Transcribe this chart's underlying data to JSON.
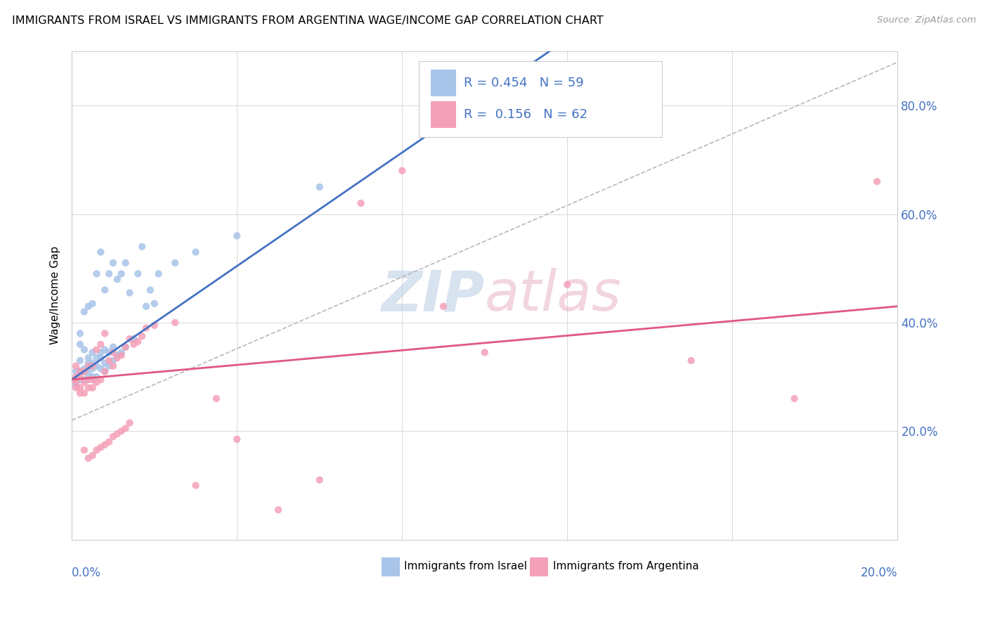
{
  "title": "IMMIGRANTS FROM ISRAEL VS IMMIGRANTS FROM ARGENTINA WAGE/INCOME GAP CORRELATION CHART",
  "source": "Source: ZipAtlas.com",
  "ylabel": "Wage/Income Gap",
  "israel_color": "#a8c4e8",
  "argentina_color": "#f4a0b8",
  "israel_line_color": "#4472c4",
  "argentina_line_color": "#e05880",
  "dashed_line_color": "#b8b8b8",
  "xlim": [
    0,
    0.2
  ],
  "ylim": [
    0,
    0.9
  ],
  "yticks": [
    0.2,
    0.4,
    0.6,
    0.8
  ],
  "ytick_labels": [
    "20.0%",
    "40.0%",
    "60.0%",
    "80.0%"
  ],
  "xtick_left": "0.0%",
  "xtick_right": "20.0%",
  "legend_label1": "Immigrants from Israel",
  "legend_label2": "Immigrants from Argentina",
  "israel_R": "0.454",
  "israel_N": "59",
  "argentina_R": "0.156",
  "argentina_N": "62",
  "israel_scatter_x": [
    0.001,
    0.001,
    0.002,
    0.002,
    0.002,
    0.002,
    0.002,
    0.003,
    0.003,
    0.003,
    0.003,
    0.003,
    0.004,
    0.004,
    0.004,
    0.004,
    0.004,
    0.004,
    0.005,
    0.005,
    0.005,
    0.005,
    0.005,
    0.006,
    0.006,
    0.006,
    0.006,
    0.007,
    0.007,
    0.007,
    0.007,
    0.008,
    0.008,
    0.008,
    0.008,
    0.009,
    0.009,
    0.009,
    0.01,
    0.01,
    0.01,
    0.011,
    0.011,
    0.012,
    0.012,
    0.013,
    0.013,
    0.014,
    0.015,
    0.016,
    0.017,
    0.018,
    0.019,
    0.02,
    0.021,
    0.025,
    0.03,
    0.04,
    0.06
  ],
  "israel_scatter_y": [
    0.285,
    0.31,
    0.295,
    0.31,
    0.33,
    0.36,
    0.38,
    0.295,
    0.31,
    0.315,
    0.35,
    0.42,
    0.295,
    0.305,
    0.315,
    0.325,
    0.335,
    0.43,
    0.3,
    0.315,
    0.325,
    0.345,
    0.435,
    0.3,
    0.32,
    0.335,
    0.49,
    0.315,
    0.335,
    0.345,
    0.53,
    0.31,
    0.325,
    0.35,
    0.46,
    0.32,
    0.345,
    0.49,
    0.33,
    0.355,
    0.51,
    0.34,
    0.48,
    0.345,
    0.49,
    0.355,
    0.51,
    0.455,
    0.37,
    0.49,
    0.54,
    0.43,
    0.46,
    0.435,
    0.49,
    0.51,
    0.53,
    0.56,
    0.65
  ],
  "argentina_scatter_x": [
    0.001,
    0.001,
    0.001,
    0.001,
    0.001,
    0.002,
    0.002,
    0.002,
    0.002,
    0.003,
    0.003,
    0.003,
    0.003,
    0.004,
    0.004,
    0.004,
    0.004,
    0.005,
    0.005,
    0.005,
    0.005,
    0.006,
    0.006,
    0.006,
    0.007,
    0.007,
    0.007,
    0.008,
    0.008,
    0.008,
    0.009,
    0.009,
    0.01,
    0.01,
    0.01,
    0.011,
    0.011,
    0.012,
    0.012,
    0.013,
    0.013,
    0.014,
    0.014,
    0.015,
    0.016,
    0.017,
    0.018,
    0.02,
    0.025,
    0.03,
    0.035,
    0.04,
    0.05,
    0.06,
    0.07,
    0.08,
    0.09,
    0.1,
    0.12,
    0.15,
    0.175,
    0.195
  ],
  "argentina_scatter_y": [
    0.28,
    0.29,
    0.295,
    0.3,
    0.32,
    0.27,
    0.28,
    0.3,
    0.31,
    0.165,
    0.27,
    0.29,
    0.31,
    0.15,
    0.28,
    0.295,
    0.32,
    0.155,
    0.28,
    0.295,
    0.32,
    0.165,
    0.29,
    0.35,
    0.17,
    0.295,
    0.36,
    0.175,
    0.31,
    0.38,
    0.18,
    0.33,
    0.19,
    0.32,
    0.345,
    0.195,
    0.335,
    0.2,
    0.34,
    0.205,
    0.355,
    0.215,
    0.37,
    0.36,
    0.365,
    0.375,
    0.39,
    0.395,
    0.4,
    0.1,
    0.26,
    0.185,
    0.055,
    0.11,
    0.62,
    0.68,
    0.43,
    0.345,
    0.47,
    0.33,
    0.26,
    0.66
  ]
}
